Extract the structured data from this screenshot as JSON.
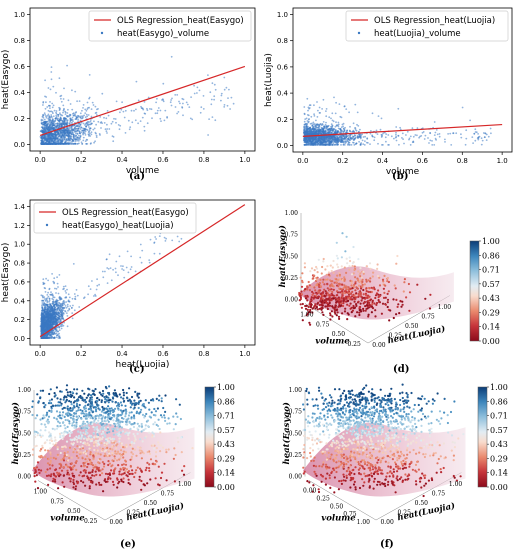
{
  "panels": {
    "a": {
      "label": "(a)"
    },
    "b": {
      "label": "(b)"
    },
    "c": {
      "label": "(c)"
    },
    "d": {
      "label": "(d)"
    },
    "e": {
      "label": "(e)"
    },
    "f": {
      "label": "(f)"
    }
  },
  "colorbar": {
    "ticks": [
      "1.00",
      "0.86",
      "0.71",
      "0.57",
      "0.43",
      "0.29",
      "0.14",
      "0.00"
    ]
  },
  "chart_data": [
    {
      "id": "a",
      "type": "scatter",
      "xlabel": "volume",
      "ylabel": "heat(Easygo)",
      "xlim": [
        0,
        1.0
      ],
      "ylim": [
        0,
        1.0
      ],
      "xticks": [
        "0.0",
        "0.2",
        "0.4",
        "0.6",
        "0.8",
        "1.0"
      ],
      "yticks": [
        "0.0",
        "0.2",
        "0.4",
        "0.6",
        "0.8",
        "1.0"
      ],
      "legend_position": "top-right",
      "series": [
        {
          "name": "OLS Regression_heat(Easygo)",
          "kind": "line",
          "color": "#d62728",
          "x": [
            0.0,
            1.0
          ],
          "y": [
            0.07,
            0.6
          ]
        },
        {
          "name": "heat(Easygo)_volume",
          "kind": "points",
          "color": "#3a78c2"
        }
      ]
    },
    {
      "id": "b",
      "type": "scatter",
      "xlabel": "volume",
      "ylabel": "heat(Luojia)",
      "xlim": [
        0,
        1.0
      ],
      "ylim": [
        0,
        1.0
      ],
      "xticks": [
        "0.0",
        "0.2",
        "0.4",
        "0.6",
        "0.8",
        "1.0"
      ],
      "yticks": [
        "0.0",
        "0.2",
        "0.4",
        "0.6",
        "0.8",
        "1.0"
      ],
      "legend_position": "top-right",
      "series": [
        {
          "name": "OLS Regression_heat(Luojia)",
          "kind": "line",
          "color": "#d62728",
          "x": [
            0.0,
            1.0
          ],
          "y": [
            0.07,
            0.16
          ]
        },
        {
          "name": "heat(Luojia)_volume",
          "kind": "points",
          "color": "#3a78c2"
        }
      ]
    },
    {
      "id": "c",
      "type": "scatter",
      "xlabel": "heat(Luojia)",
      "ylabel": "heat(Easygo)",
      "xlim": [
        0,
        1.0
      ],
      "ylim": [
        0,
        1.4
      ],
      "xticks": [
        "0.0",
        "0.2",
        "0.4",
        "0.6",
        "0.8",
        "1.0"
      ],
      "yticks": [
        "0.0",
        "0.2",
        "0.4",
        "0.6",
        "0.8",
        "1.0",
        "1.2",
        "1.4"
      ],
      "legend_position": "top-left",
      "series": [
        {
          "name": "OLS Regression_heat(Easygo)",
          "kind": "line",
          "color": "#d62728",
          "x": [
            0.0,
            1.0
          ],
          "y": [
            0.02,
            1.42
          ]
        },
        {
          "name": "heat(Easygo)_heat(Luojia)",
          "kind": "points",
          "color": "#3a78c2"
        }
      ]
    },
    {
      "id": "d",
      "type": "scatter3d",
      "zlabel": "heat(Easygo)",
      "xlabel": "volume",
      "ylabel": "heat(Luojia)",
      "zticks": [
        "0.00",
        "0.25",
        "0.50",
        "0.75",
        "1.00"
      ],
      "xticks": [
        "1.00",
        "0.75",
        "0.50",
        "0.25"
      ],
      "yticks": [
        "0.00",
        "0.25",
        "0.50",
        "0.75",
        "1.00"
      ],
      "colormap": "RdBu",
      "colorbar_range": [
        0.0,
        1.0
      ]
    },
    {
      "id": "e",
      "type": "scatter3d",
      "zlabel": "heat(Easygo)",
      "xlabel": "volume",
      "ylabel": "heat(Luojia)",
      "zticks": [
        "0.00",
        "0.25",
        "0.50",
        "0.75",
        "1.00"
      ],
      "xticks": [
        "1.00",
        "0.75",
        "0.50",
        "0.25"
      ],
      "yticks": [
        "0.00",
        "0.25",
        "0.50",
        "0.75",
        "1.00"
      ],
      "colormap": "RdBu",
      "colorbar_range": [
        0.0,
        1.0
      ]
    },
    {
      "id": "f",
      "type": "scatter3d",
      "zlabel": "heat(Easygo)",
      "xlabel": "volume",
      "ylabel": "heat(Luojia)",
      "zticks": [
        "0.00",
        "0.25",
        "0.50",
        "0.75",
        "1.00"
      ],
      "xticks": [
        "0.00",
        "0.25",
        "0.50",
        "0.75",
        "1.00"
      ],
      "yticks": [
        "0.00",
        "0.25",
        "0.50",
        "0.75",
        "1.00"
      ],
      "colormap": "RdBu",
      "colorbar_range": [
        0.0,
        1.0
      ]
    }
  ]
}
